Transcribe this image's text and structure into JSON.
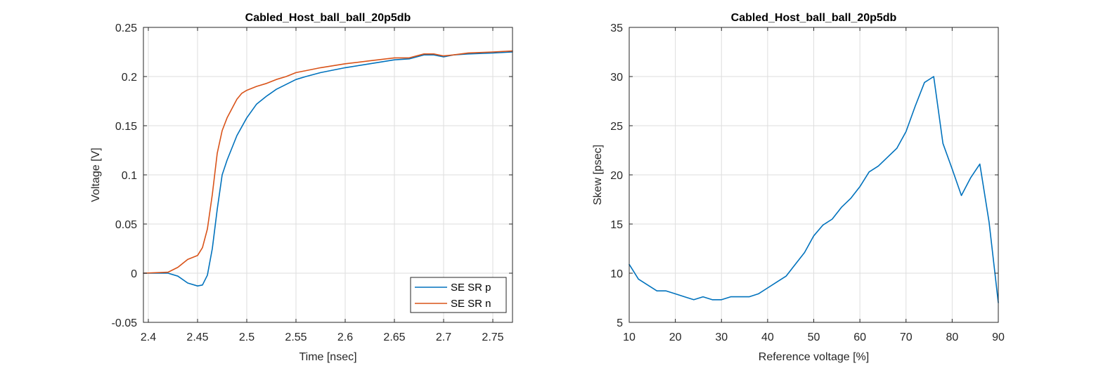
{
  "chart_data": [
    {
      "type": "line",
      "title": "Cabled_Host_ball_ball_20p5db",
      "xlabel": "Time [nsec]",
      "ylabel": "Voltage [V]",
      "xlim": [
        2.395,
        2.77
      ],
      "ylim": [
        -0.05,
        0.25
      ],
      "xticks": [
        2.4,
        2.45,
        2.5,
        2.55,
        2.6,
        2.65,
        2.7,
        2.75
      ],
      "xtick_labels": [
        "2.4",
        "2.45",
        "2.5",
        "2.55",
        "2.6",
        "2.65",
        "2.7",
        "2.75"
      ],
      "yticks": [
        -0.05,
        0,
        0.05,
        0.1,
        0.15,
        0.2,
        0.25
      ],
      "ytick_labels": [
        "-0.05",
        "0",
        "0.05",
        "0.1",
        "0.15",
        "0.2",
        "0.25"
      ],
      "grid": true,
      "legend_position": "bottom-right",
      "series": [
        {
          "name": "SE SR p",
          "color": "#0072BD",
          "x": [
            2.395,
            2.42,
            2.43,
            2.44,
            2.45,
            2.455,
            2.46,
            2.465,
            2.47,
            2.475,
            2.48,
            2.49,
            2.5,
            2.51,
            2.52,
            2.53,
            2.54,
            2.55,
            2.56,
            2.575,
            2.6,
            2.625,
            2.65,
            2.665,
            2.68,
            2.69,
            2.7,
            2.71,
            2.725,
            2.75,
            2.77
          ],
          "y": [
            0.0,
            0.0,
            -0.003,
            -0.01,
            -0.013,
            -0.012,
            -0.002,
            0.025,
            0.065,
            0.1,
            0.115,
            0.14,
            0.158,
            0.172,
            0.18,
            0.187,
            0.192,
            0.197,
            0.2,
            0.204,
            0.209,
            0.213,
            0.217,
            0.218,
            0.222,
            0.222,
            0.22,
            0.222,
            0.223,
            0.224,
            0.225
          ]
        },
        {
          "name": "SE SR n",
          "color": "#D95319",
          "x": [
            2.395,
            2.42,
            2.43,
            2.44,
            2.45,
            2.455,
            2.46,
            2.465,
            2.47,
            2.475,
            2.48,
            2.49,
            2.495,
            2.5,
            2.51,
            2.52,
            2.53,
            2.54,
            2.55,
            2.56,
            2.575,
            2.6,
            2.625,
            2.65,
            2.665,
            2.68,
            2.69,
            2.7,
            2.71,
            2.725,
            2.75,
            2.77
          ],
          "y": [
            0.0,
            0.001,
            0.006,
            0.014,
            0.018,
            0.026,
            0.045,
            0.08,
            0.122,
            0.145,
            0.158,
            0.177,
            0.183,
            0.186,
            0.19,
            0.193,
            0.197,
            0.2,
            0.204,
            0.206,
            0.209,
            0.213,
            0.216,
            0.219,
            0.219,
            0.223,
            0.223,
            0.221,
            0.222,
            0.224,
            0.225,
            0.226
          ]
        }
      ]
    },
    {
      "type": "line",
      "title": "Cabled_Host_ball_ball_20p5db",
      "xlabel": "Reference voltage [%]",
      "ylabel": "Skew [psec]",
      "xlim": [
        10,
        90
      ],
      "ylim": [
        5,
        35
      ],
      "xticks": [
        10,
        20,
        30,
        40,
        50,
        60,
        70,
        80,
        90
      ],
      "xtick_labels": [
        "10",
        "20",
        "30",
        "40",
        "50",
        "60",
        "70",
        "80",
        "90"
      ],
      "yticks": [
        5,
        10,
        15,
        20,
        25,
        30,
        35
      ],
      "ytick_labels": [
        "5",
        "10",
        "15",
        "20",
        "25",
        "30",
        "35"
      ],
      "grid": true,
      "series": [
        {
          "color": "#0072BD",
          "x": [
            10,
            12,
            14,
            16,
            18,
            20,
            22,
            24,
            26,
            28,
            30,
            32,
            34,
            36,
            38,
            40,
            42,
            44,
            46,
            48,
            50,
            52,
            54,
            56,
            58,
            60,
            62,
            64,
            66,
            68,
            70,
            72,
            74,
            76,
            78,
            80,
            82,
            84,
            86,
            88,
            90
          ],
          "y": [
            10.9,
            9.4,
            8.8,
            8.2,
            8.2,
            7.9,
            7.6,
            7.3,
            7.6,
            7.3,
            7.3,
            7.6,
            7.6,
            7.6,
            7.9,
            8.5,
            9.1,
            9.7,
            10.9,
            12.1,
            13.8,
            14.9,
            15.5,
            16.7,
            17.6,
            18.8,
            20.3,
            20.9,
            21.8,
            22.7,
            24.4,
            27.0,
            29.4,
            30.0,
            23.2,
            20.6,
            17.9,
            19.7,
            21.1,
            15.2,
            7.0
          ]
        }
      ]
    }
  ]
}
